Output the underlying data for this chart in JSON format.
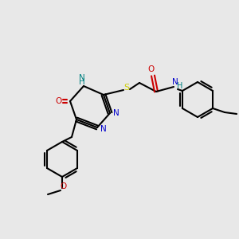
{
  "bg_color": "#e8e8e8",
  "bond_color": "#000000",
  "bond_lw": 1.5,
  "atom_colors": {
    "N": "#0000cc",
    "O": "#cc0000",
    "S": "#cccc00",
    "NH": "#008080",
    "C": "#000000"
  },
  "font_size": 7.5
}
